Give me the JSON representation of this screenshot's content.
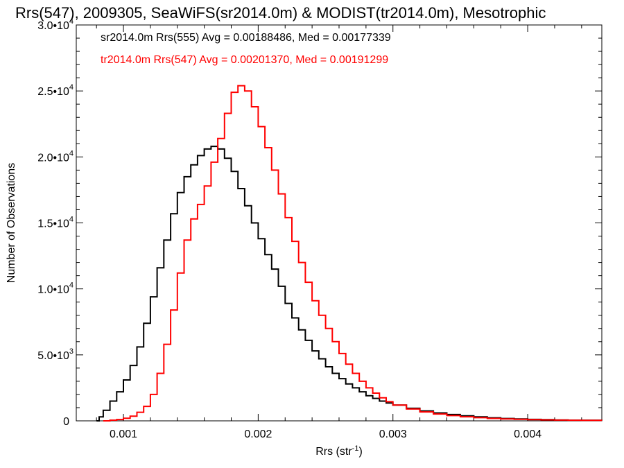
{
  "chart_data": {
    "type": "line",
    "title": "Rrs(547), 2009305, SeaWiFS(sr2014.0m) & MODIST(tr2014.0m), Mesotrophic",
    "xlabel": "Rrs (str",
    "xlabel_sup": "-1",
    "xlabel_close": ")",
    "ylabel": "Number of Observations",
    "xlim": [
      0.00065,
      0.00455
    ],
    "ylim": [
      0,
      30000
    ],
    "x_ticks": [
      {
        "value": 0.001,
        "label": "0.001"
      },
      {
        "value": 0.002,
        "label": "0.002"
      },
      {
        "value": 0.003,
        "label": "0.003"
      },
      {
        "value": 0.004,
        "label": "0.004"
      }
    ],
    "y_ticks": [
      {
        "value": 0,
        "mant": "0",
        "exp": ""
      },
      {
        "value": 5000,
        "mant": "5.0•10",
        "exp": "3"
      },
      {
        "value": 10000,
        "mant": "1.0•10",
        "exp": "4"
      },
      {
        "value": 15000,
        "mant": "1.5•10",
        "exp": "4"
      },
      {
        "value": 20000,
        "mant": "2.0•10",
        "exp": "4"
      },
      {
        "value": 25000,
        "mant": "2.5•10",
        "exp": "4"
      },
      {
        "value": 30000,
        "mant": "3.0•10",
        "exp": "4"
      }
    ],
    "grid": false,
    "legend_position": "top-left",
    "series": [
      {
        "name": "sr2014.0m Rrs(555) Avg = 0.00188486, Med = 0.00177339",
        "color": "#000000",
        "points": [
          [
            0.0008,
            0
          ],
          [
            0.00082,
            300
          ],
          [
            0.00085,
            800
          ],
          [
            0.0009,
            1500
          ],
          [
            0.00095,
            2200
          ],
          [
            0.001,
            3100
          ],
          [
            0.00105,
            4200
          ],
          [
            0.0011,
            5600
          ],
          [
            0.00115,
            7400
          ],
          [
            0.0012,
            9400
          ],
          [
            0.00125,
            11600
          ],
          [
            0.0013,
            13700
          ],
          [
            0.00135,
            15700
          ],
          [
            0.0014,
            17300
          ],
          [
            0.00145,
            18500
          ],
          [
            0.0015,
            19400
          ],
          [
            0.00155,
            20100
          ],
          [
            0.0016,
            20600
          ],
          [
            0.00165,
            20800
          ],
          [
            0.0017,
            20600
          ],
          [
            0.00175,
            19900
          ],
          [
            0.0018,
            18900
          ],
          [
            0.00185,
            17600
          ],
          [
            0.0019,
            16300
          ],
          [
            0.00195,
            15000
          ],
          [
            0.002,
            13800
          ],
          [
            0.00205,
            12600
          ],
          [
            0.0021,
            11500
          ],
          [
            0.00215,
            10200
          ],
          [
            0.0022,
            8900
          ],
          [
            0.00225,
            7800
          ],
          [
            0.0023,
            6900
          ],
          [
            0.00235,
            6100
          ],
          [
            0.0024,
            5300
          ],
          [
            0.00245,
            4700
          ],
          [
            0.0025,
            4100
          ],
          [
            0.00255,
            3600
          ],
          [
            0.0026,
            3200
          ],
          [
            0.00265,
            2800
          ],
          [
            0.0027,
            2500
          ],
          [
            0.00275,
            2200
          ],
          [
            0.0028,
            1900
          ],
          [
            0.00285,
            1700
          ],
          [
            0.0029,
            1500
          ],
          [
            0.00295,
            1350
          ],
          [
            0.003,
            1200
          ],
          [
            0.0031,
            950
          ],
          [
            0.0032,
            750
          ],
          [
            0.0033,
            600
          ],
          [
            0.0034,
            480
          ],
          [
            0.0035,
            380
          ],
          [
            0.0036,
            300
          ],
          [
            0.0037,
            230
          ],
          [
            0.0038,
            180
          ],
          [
            0.0039,
            140
          ],
          [
            0.004,
            110
          ],
          [
            0.0041,
            90
          ],
          [
            0.0042,
            70
          ],
          [
            0.0043,
            55
          ],
          [
            0.0044,
            45
          ],
          [
            0.00455,
            35
          ]
        ]
      },
      {
        "name": "tr2014.0m Rrs(547) Avg = 0.00201370, Med = 0.00191299",
        "color": "#ff0000",
        "points": [
          [
            0.00085,
            0
          ],
          [
            0.0009,
            50
          ],
          [
            0.00095,
            100
          ],
          [
            0.001,
            200
          ],
          [
            0.00105,
            350
          ],
          [
            0.0011,
            650
          ],
          [
            0.00115,
            1100
          ],
          [
            0.0012,
            2000
          ],
          [
            0.00125,
            3600
          ],
          [
            0.0013,
            5800
          ],
          [
            0.00135,
            8400
          ],
          [
            0.0014,
            11200
          ],
          [
            0.00145,
            13700
          ],
          [
            0.0015,
            15300
          ],
          [
            0.00155,
            16400
          ],
          [
            0.0016,
            17800
          ],
          [
            0.00165,
            19600
          ],
          [
            0.0017,
            21400
          ],
          [
            0.00175,
            23300
          ],
          [
            0.0018,
            24900
          ],
          [
            0.00185,
            25400
          ],
          [
            0.0019,
            25000
          ],
          [
            0.00195,
            23800
          ],
          [
            0.002,
            22300
          ],
          [
            0.00205,
            20700
          ],
          [
            0.0021,
            19000
          ],
          [
            0.00215,
            17200
          ],
          [
            0.0022,
            15400
          ],
          [
            0.00225,
            13600
          ],
          [
            0.0023,
            12000
          ],
          [
            0.00235,
            10500
          ],
          [
            0.0024,
            9100
          ],
          [
            0.00245,
            8000
          ],
          [
            0.0025,
            7000
          ],
          [
            0.00255,
            6000
          ],
          [
            0.0026,
            5100
          ],
          [
            0.00265,
            4300
          ],
          [
            0.0027,
            3600
          ],
          [
            0.00275,
            3000
          ],
          [
            0.0028,
            2500
          ],
          [
            0.00285,
            2100
          ],
          [
            0.0029,
            1750
          ],
          [
            0.00295,
            1450
          ],
          [
            0.003,
            1200
          ],
          [
            0.0031,
            900
          ],
          [
            0.0032,
            680
          ],
          [
            0.0033,
            520
          ],
          [
            0.0034,
            400
          ],
          [
            0.0035,
            310
          ],
          [
            0.0036,
            240
          ],
          [
            0.0037,
            185
          ],
          [
            0.0038,
            145
          ],
          [
            0.0039,
            115
          ],
          [
            0.004,
            90
          ],
          [
            0.0041,
            72
          ],
          [
            0.0042,
            58
          ],
          [
            0.0043,
            46
          ],
          [
            0.0044,
            38
          ],
          [
            0.00455,
            30
          ]
        ]
      }
    ]
  }
}
